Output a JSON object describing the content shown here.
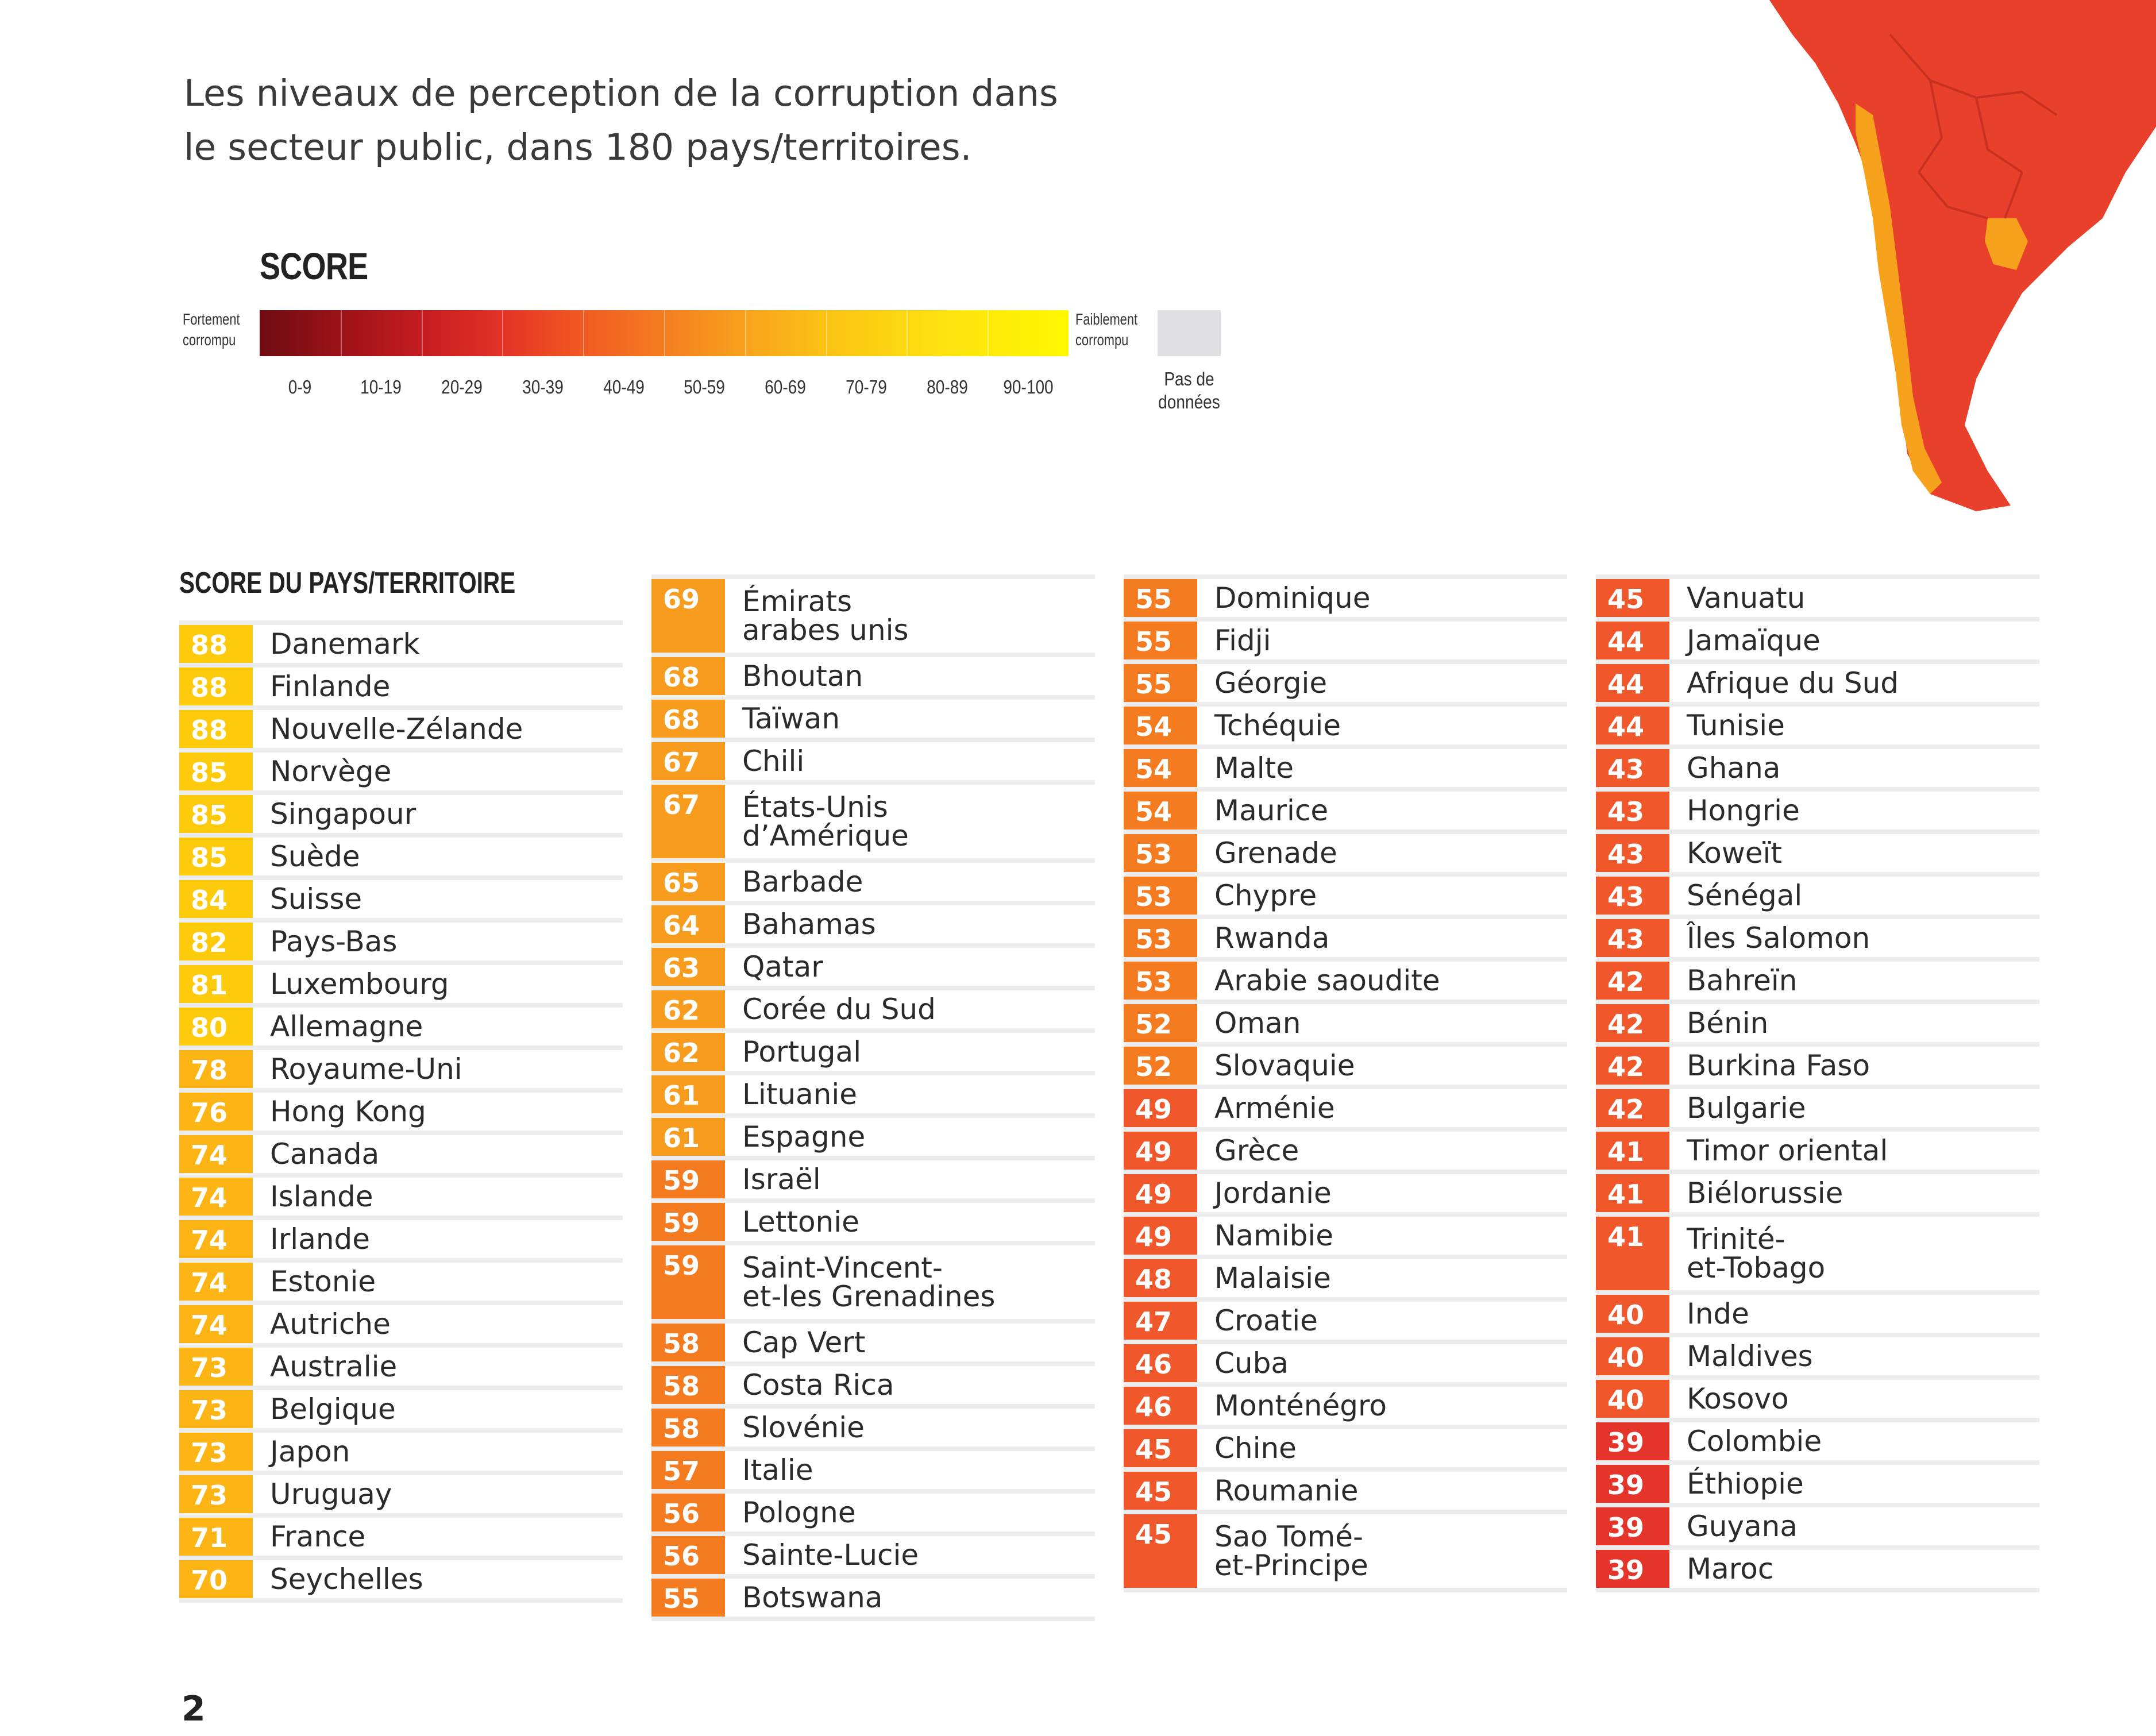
{
  "intro": {
    "line1": "Les niveaux de perception de la corruption dans",
    "line2": "le secteur public, dans 180 pays/territoires."
  },
  "legend": {
    "title": "SCORE",
    "left_label": "Fortement\ncorrompu",
    "right_label": "Faiblement\ncorrompu",
    "ranges": [
      "0-9",
      "10-19",
      "20-29",
      "30-39",
      "40-49",
      "50-59",
      "60-69",
      "70-79",
      "80-89",
      "90-100"
    ],
    "no_data_label": "Pas de\ndonnées",
    "no_data_color": "#e0e0e2"
  },
  "list_heading": "SCORE DU PAYS/TERRITOIRE",
  "colors": {
    "s80_100": "#fdcb0c",
    "s70_79": "#fdb515",
    "s60_69": "#f89c1e",
    "s50_59": "#f47b20",
    "s40_49": "#f0572a",
    "s30_39": "#e5352b",
    "map_red": "#e8402b",
    "map_orange": "#f7a21c"
  },
  "columns": [
    [
      {
        "score": "88",
        "name": "Danemark"
      },
      {
        "score": "88",
        "name": "Finlande"
      },
      {
        "score": "88",
        "name": "Nouvelle-Zélande"
      },
      {
        "score": "85",
        "name": "Norvège"
      },
      {
        "score": "85",
        "name": "Singapour"
      },
      {
        "score": "85",
        "name": "Suède"
      },
      {
        "score": "84",
        "name": "Suisse"
      },
      {
        "score": "82",
        "name": "Pays-Bas"
      },
      {
        "score": "81",
        "name": "Luxembourg"
      },
      {
        "score": "80",
        "name": "Allemagne"
      },
      {
        "score": "78",
        "name": "Royaume-Uni"
      },
      {
        "score": "76",
        "name": "Hong Kong"
      },
      {
        "score": "74",
        "name": "Canada"
      },
      {
        "score": "74",
        "name": "Islande"
      },
      {
        "score": "74",
        "name": "Irlande"
      },
      {
        "score": "74",
        "name": "Estonie"
      },
      {
        "score": "74",
        "name": "Autriche"
      },
      {
        "score": "73",
        "name": "Australie"
      },
      {
        "score": "73",
        "name": "Belgique"
      },
      {
        "score": "73",
        "name": "Japon"
      },
      {
        "score": "73",
        "name": "Uruguay"
      },
      {
        "score": "71",
        "name": "France"
      },
      {
        "score": "70",
        "name": "Seychelles"
      }
    ],
    [
      {
        "score": "69",
        "name": "Émirats\narabes unis"
      },
      {
        "score": "68",
        "name": "Bhoutan"
      },
      {
        "score": "68",
        "name": "Taïwan"
      },
      {
        "score": "67",
        "name": "Chili"
      },
      {
        "score": "67",
        "name": "États-Unis\nd’Amérique"
      },
      {
        "score": "65",
        "name": "Barbade"
      },
      {
        "score": "64",
        "name": "Bahamas"
      },
      {
        "score": "63",
        "name": "Qatar"
      },
      {
        "score": "62",
        "name": "Corée du Sud"
      },
      {
        "score": "62",
        "name": "Portugal"
      },
      {
        "score": "61",
        "name": "Lituanie"
      },
      {
        "score": "61",
        "name": "Espagne"
      },
      {
        "score": "59",
        "name": "Israël"
      },
      {
        "score": "59",
        "name": "Lettonie"
      },
      {
        "score": "59",
        "name": "Saint-Vincent-\net-les Grenadines"
      },
      {
        "score": "58",
        "name": "Cap Vert"
      },
      {
        "score": "58",
        "name": "Costa Rica"
      },
      {
        "score": "58",
        "name": "Slovénie"
      },
      {
        "score": "57",
        "name": "Italie"
      },
      {
        "score": "56",
        "name": "Pologne"
      },
      {
        "score": "56",
        "name": "Sainte-Lucie"
      },
      {
        "score": "55",
        "name": "Botswana"
      }
    ],
    [
      {
        "score": "55",
        "name": "Dominique"
      },
      {
        "score": "55",
        "name": "Fidji"
      },
      {
        "score": "55",
        "name": "Géorgie"
      },
      {
        "score": "54",
        "name": "Tchéquie"
      },
      {
        "score": "54",
        "name": "Malte"
      },
      {
        "score": "54",
        "name": "Maurice"
      },
      {
        "score": "53",
        "name": "Grenade"
      },
      {
        "score": "53",
        "name": "Chypre"
      },
      {
        "score": "53",
        "name": "Rwanda"
      },
      {
        "score": "53",
        "name": "Arabie saoudite"
      },
      {
        "score": "52",
        "name": "Oman"
      },
      {
        "score": "52",
        "name": "Slovaquie"
      },
      {
        "score": "49",
        "name": "Arménie"
      },
      {
        "score": "49",
        "name": "Grèce"
      },
      {
        "score": "49",
        "name": "Jordanie"
      },
      {
        "score": "49",
        "name": "Namibie"
      },
      {
        "score": "48",
        "name": "Malaisie"
      },
      {
        "score": "47",
        "name": "Croatie"
      },
      {
        "score": "46",
        "name": "Cuba"
      },
      {
        "score": "46",
        "name": "Monténégro"
      },
      {
        "score": "45",
        "name": "Chine"
      },
      {
        "score": "45",
        "name": "Roumanie"
      },
      {
        "score": "45",
        "name": "Sao Tomé-\net-Principe"
      }
    ],
    [
      {
        "score": "45",
        "name": "Vanuatu"
      },
      {
        "score": "44",
        "name": "Jamaïque"
      },
      {
        "score": "44",
        "name": "Afrique du Sud"
      },
      {
        "score": "44",
        "name": "Tunisie"
      },
      {
        "score": "43",
        "name": "Ghana"
      },
      {
        "score": "43",
        "name": "Hongrie"
      },
      {
        "score": "43",
        "name": "Koweït"
      },
      {
        "score": "43",
        "name": "Sénégal"
      },
      {
        "score": "43",
        "name": "Îles Salomon"
      },
      {
        "score": "42",
        "name": "Bahreïn"
      },
      {
        "score": "42",
        "name": "Bénin"
      },
      {
        "score": "42",
        "name": "Burkina Faso"
      },
      {
        "score": "42",
        "name": "Bulgarie"
      },
      {
        "score": "41",
        "name": "Timor oriental"
      },
      {
        "score": "41",
        "name": "Biélorussie"
      },
      {
        "score": "41",
        "name": "Trinité-\net-Tobago"
      },
      {
        "score": "40",
        "name": "Inde"
      },
      {
        "score": "40",
        "name": "Maldives"
      },
      {
        "score": "40",
        "name": "Kosovo"
      },
      {
        "score": "39",
        "name": "Colombie"
      },
      {
        "score": "39",
        "name": "Éthiopie"
      },
      {
        "score": "39",
        "name": "Guyana"
      },
      {
        "score": "39",
        "name": "Maroc"
      }
    ]
  ],
  "page_number": "2"
}
